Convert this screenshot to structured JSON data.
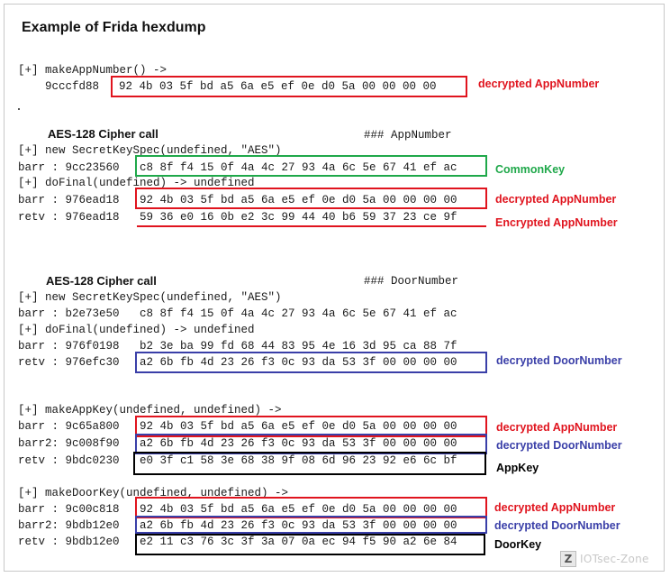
{
  "title": "Example of Frida hexdump",
  "colors": {
    "red": "#e0141e",
    "green": "#1fa84a",
    "blue": "#3a3fa8",
    "black": "#000000"
  },
  "section1": {
    "call_line": "[+] makeAppNumber() ->",
    "addr": "    9cccfd88",
    "hex": "92 4b 03 5f bd a5 6a e5 ef 0e d0 5a 00 00 00 00",
    "label": "decrypted AppNumber"
  },
  "section2": {
    "heading": "AES-128 Cipher call",
    "tag": "### AppNumber",
    "line1": "[+] new SecretKeySpec(undefined, \"AES\")",
    "barr_addr": "barr : 9cc23560",
    "barr_hex": "c8 8f f4 15 0f 4a 4c 27 93 4a 6c 5e 67 41 ef ac",
    "barr_label": "CommonKey",
    "line2": "[+] doFinal(undefined) -> undefined",
    "barr2_addr": "barr : 976ead18",
    "barr2_hex": "92 4b 03 5f bd a5 6a e5 ef 0e d0 5a 00 00 00 00",
    "barr2_label": "decrypted AppNumber",
    "retv_addr": "retv : 976ead18",
    "retv_hex": "59 36 e0 16 0b e2 3c 99 44 40 b6 59 37 23 ce 9f",
    "retv_label": "Encrypted AppNumber"
  },
  "section3": {
    "heading": "AES-128 Cipher call",
    "tag": "### DoorNumber",
    "line1": "[+] new SecretKeySpec(undefined, \"AES\")",
    "barr_addr": "barr : b2e73e50",
    "barr_hex": "c8 8f f4 15 0f 4a 4c 27 93 4a 6c 5e 67 41 ef ac",
    "line2": "[+] doFinal(undefined) -> undefined",
    "barr2_addr": "barr : 976f0198",
    "barr2_hex": "b2 3e ba 99 fd 68 44 83 95 4e 16 3d 95 ca 88 7f",
    "retv_addr": "retv : 976efc30",
    "retv_hex": "a2 6b fb 4d 23 26 f3 0c 93 da 53 3f 00 00 00 00",
    "retv_label": "decrypted DoorNumber"
  },
  "section4": {
    "call_line": "[+] makeAppKey(undefined, undefined) ->",
    "barr_addr": "barr : 9c65a800",
    "barr_hex": "92 4b 03 5f bd a5 6a e5 ef 0e d0 5a 00 00 00 00",
    "barr_label": "decrypted AppNumber",
    "barr2_addr": "barr2: 9c008f90",
    "barr2_hex": "a2 6b fb 4d 23 26 f3 0c 93 da 53 3f 00 00 00 00",
    "barr2_label": "decrypted DoorNumber",
    "retv_addr": "retv : 9bdc0230",
    "retv_hex": "e0 3f c1 58 3e 68 38 9f 08 6d 96 23 92 e6 6c bf",
    "retv_label": "AppKey"
  },
  "section5": {
    "call_line": "[+] makeDoorKey(undefined, undefined) ->",
    "barr_addr": "barr : 9c00c818",
    "barr_hex": "92 4b 03 5f bd a5 6a e5 ef 0e d0 5a 00 00 00 00",
    "barr_label": "decrypted AppNumber",
    "barr2_addr": "barr2: 9bdb12e0",
    "barr2_hex": "a2 6b fb 4d 23 26 f3 0c 93 da 53 3f 00 00 00 00",
    "barr2_label": "decrypted DoorNumber",
    "retv_addr": "retv : 9bdb12e0",
    "retv_hex": "e2 11 c3 76 3c 3f 3a 07 0a ec 94 f5 90 a2 6e 84",
    "retv_label": "DoorKey"
  },
  "watermark": {
    "icon": "Z",
    "text": "IOTsec-Zone"
  }
}
